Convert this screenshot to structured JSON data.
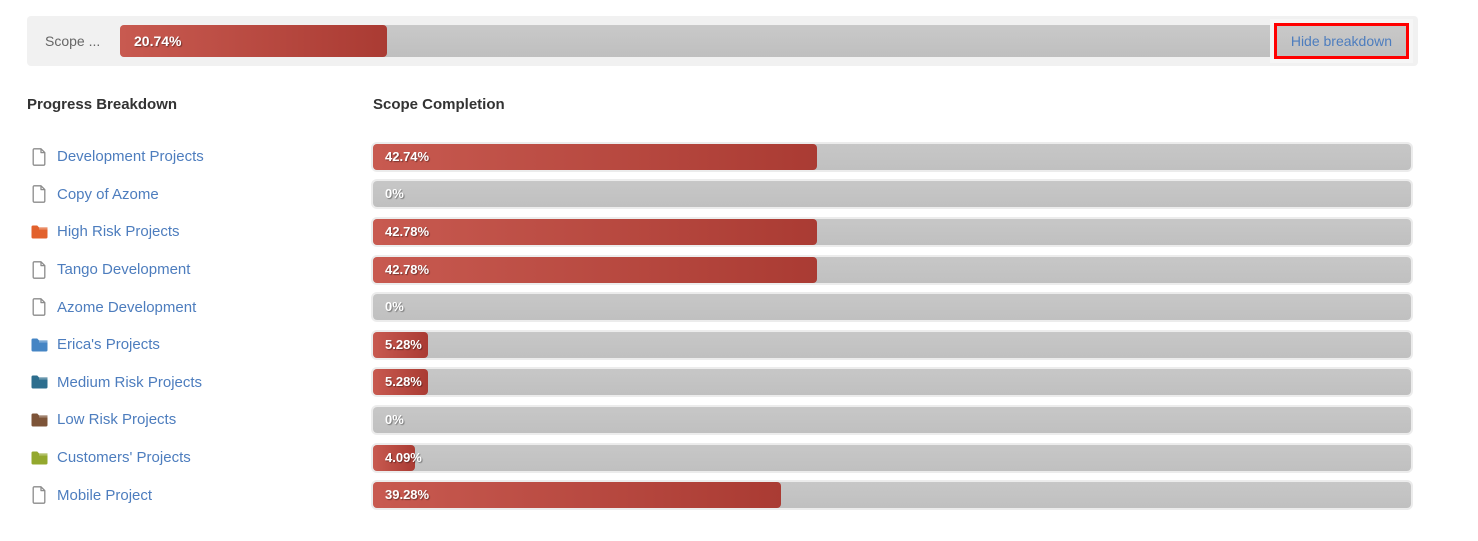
{
  "top_banner": {
    "label": "Scope ...",
    "progress_percent": 20.74,
    "progress_value": "20.74%",
    "action_label": "Hide breakdown"
  },
  "headers": {
    "left": "Progress Breakdown",
    "right": "Scope Completion"
  },
  "projects": [
    {
      "name": "Development Projects",
      "icon": "document",
      "value": 42.74,
      "value_label": "42.74%"
    },
    {
      "name": "Copy of Azome",
      "icon": "document",
      "value": 0,
      "value_label": "0%"
    },
    {
      "name": "High Risk Projects",
      "icon": "folder",
      "folder_color": "#e2612c",
      "value": 42.78,
      "value_label": "42.78%"
    },
    {
      "name": "Tango Development",
      "icon": "document",
      "value": 42.78,
      "value_label": "42.78%"
    },
    {
      "name": "Azome Development",
      "icon": "document",
      "value": 0,
      "value_label": "0%"
    },
    {
      "name": "Erica's Projects",
      "icon": "folder",
      "folder_color": "#4585c4",
      "value": 5.28,
      "value_label": "5.28%"
    },
    {
      "name": "Medium Risk Projects",
      "icon": "folder",
      "folder_color": "#2d6e8e",
      "value": 5.28,
      "value_label": "5.28%"
    },
    {
      "name": "Low Risk Projects",
      "icon": "folder",
      "folder_color": "#7d5438",
      "value": 0,
      "value_label": "0%"
    },
    {
      "name": "Customers' Projects",
      "icon": "folder",
      "folder_color": "#93a82d",
      "value": 4.09,
      "value_label": "4.09%"
    },
    {
      "name": "Mobile Project",
      "icon": "document",
      "value": 39.28,
      "value_label": "39.28%"
    }
  ],
  "chart_data": {
    "type": "bar",
    "orientation": "horizontal",
    "title": "Scope Completion",
    "categories": [
      "Development Projects",
      "Copy of Azome",
      "High Risk Projects",
      "Tango Development",
      "Azome Development",
      "Erica's Projects",
      "Medium Risk Projects",
      "Low Risk Projects",
      "Customers' Projects",
      "Mobile Project"
    ],
    "values": [
      42.74,
      0,
      42.78,
      42.78,
      0,
      5.28,
      5.28,
      0,
      4.09,
      39.28
    ],
    "value_labels": [
      "42.74%",
      "0%",
      "42.78%",
      "42.78%",
      "0%",
      "5.28%",
      "5.28%",
      "0%",
      "4.09%",
      "39.28%"
    ],
    "xlim": [
      0,
      100
    ],
    "overall": {
      "label": "Scope ...",
      "value": 20.74,
      "value_label": "20.74%"
    }
  },
  "colors": {
    "banner_bg": "#f1f1f1",
    "track_gray": "#c3c3c3",
    "fill_red_start": "#c85a50",
    "fill_red_end": "#aa3b33",
    "link_blue": "#4d7dbe",
    "annotation_red": "#ff0000",
    "header_text": "#333333",
    "document_icon_stroke": "#8b8b8b"
  }
}
